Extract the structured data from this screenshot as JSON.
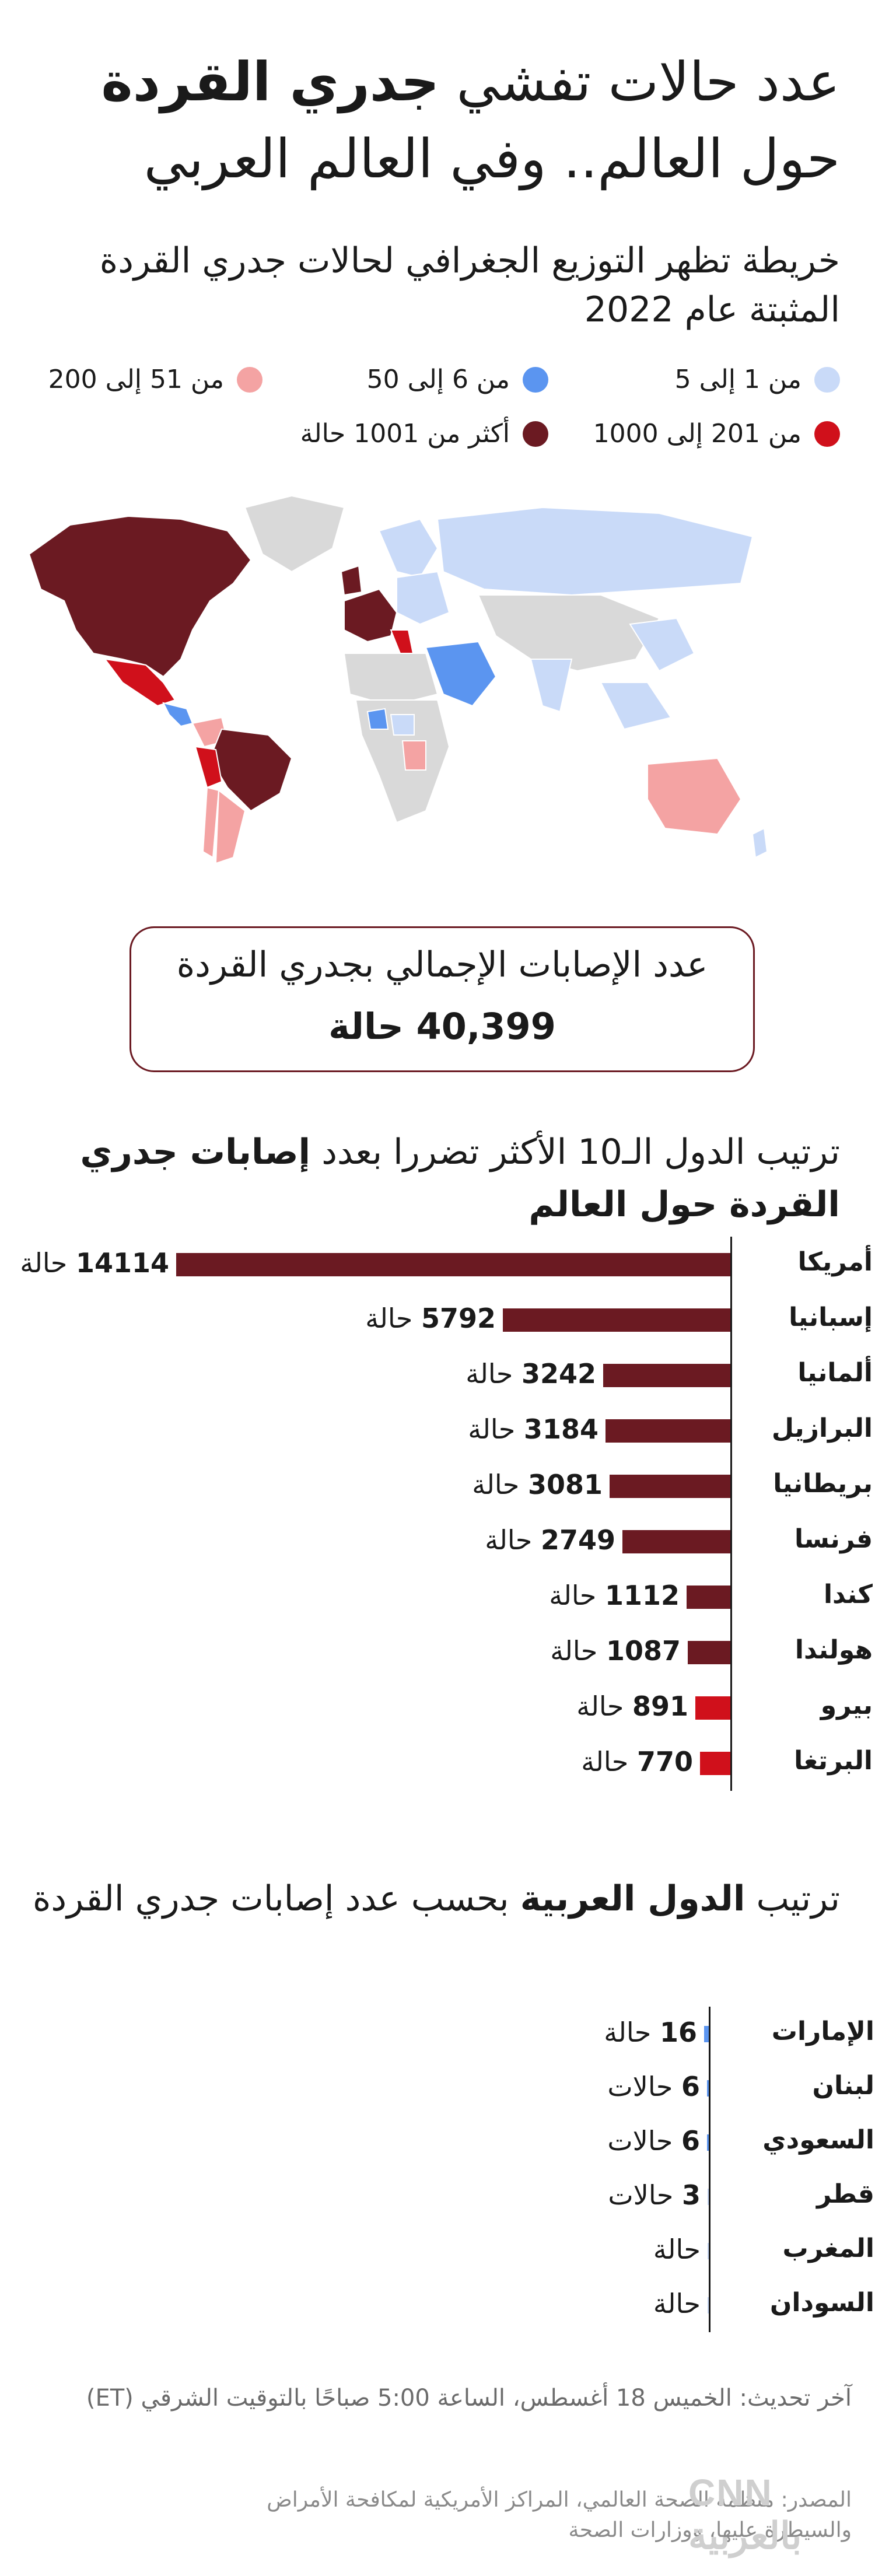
{
  "title": {
    "line1_part1": "عدد حالات تفشي ",
    "line1_bold": "جدري القردة",
    "line2": "حول العالم.. وفي العالم العربي"
  },
  "map_section": {
    "subtitle": "خريطة تظهر التوزيع الجغرافي لحالات جدري القردة المثبتة عام 2022",
    "legend": [
      {
        "label": "من 1 إلى 5",
        "color": "#c9daf8"
      },
      {
        "label": "من 6 إلى 50",
        "color": "#5b95f0"
      },
      {
        "label": "من 51 إلى 200",
        "color": "#f4a3a3"
      },
      {
        "label": "من 201 إلى 1000",
        "color": "#d0101b"
      },
      {
        "label": "أكثر من 1001 حالة",
        "color": "#6b1a22"
      }
    ],
    "no_data_color": "#d9d9d9"
  },
  "total": {
    "label": "عدد الإصابات الإجمالي بجدري القردة",
    "value": "40,399 حالة"
  },
  "chart_data": [
    {
      "type": "bar",
      "title_part1": "ترتيب الدول الـ10 الأكثر تضررا بعدد ",
      "title_bold": "إصابات جدري القردة حول العالم",
      "unit": "حالة",
      "categories": [
        "أمريكا",
        "إسبانيا",
        "ألمانيا",
        "البرازيل",
        "بريطانيا",
        "فرنسا",
        "كندا",
        "هولندا",
        "بيرو",
        "البرتغا"
      ],
      "values": [
        14114,
        5792,
        3242,
        3184,
        3081,
        2749,
        1112,
        1087,
        891,
        770
      ],
      "value_labels": [
        "14114",
        "5792",
        "3242",
        "3184",
        "3081",
        "2749",
        "1112",
        "1087",
        "891",
        "770"
      ],
      "colors": [
        "#6b1a22",
        "#6b1a22",
        "#6b1a22",
        "#6b1a22",
        "#6b1a22",
        "#6b1a22",
        "#6b1a22",
        "#6b1a22",
        "#d0101b",
        "#d0101b"
      ]
    },
    {
      "type": "bar",
      "title_part1": "ترتيب ",
      "title_bold": "الدول العربية",
      "title_part2": " بحسب عدد إصابات جدري القردة",
      "categories": [
        "الإمارات",
        "لبنان",
        "السعودي",
        "قطر",
        "المغرب",
        "السودان"
      ],
      "values": [
        16,
        6,
        6,
        3,
        1,
        1
      ],
      "value_labels": [
        "16",
        "6",
        "6",
        "3",
        "",
        ""
      ],
      "units": [
        "حالة",
        "حالات",
        "حالات",
        "حالات",
        "حالة",
        "حالة"
      ],
      "colors": [
        "#5b95f0",
        "#5b95f0",
        "#5b95f0",
        "#c9daf8",
        "#c9daf8",
        "#c9daf8"
      ]
    }
  ],
  "footer": {
    "updated": "آخر تحديث: الخميس 18 أغسطس، الساعة 5:00 صباحًا بالتوقيت الشرقي (ET)",
    "source": "المصدر: منظمة الصحة العالمي، المراكز الأمريكية لمكافحة الأمراض والسيطرة عليها، ووزارات الصحة",
    "logo": "CNN بالعربية"
  }
}
